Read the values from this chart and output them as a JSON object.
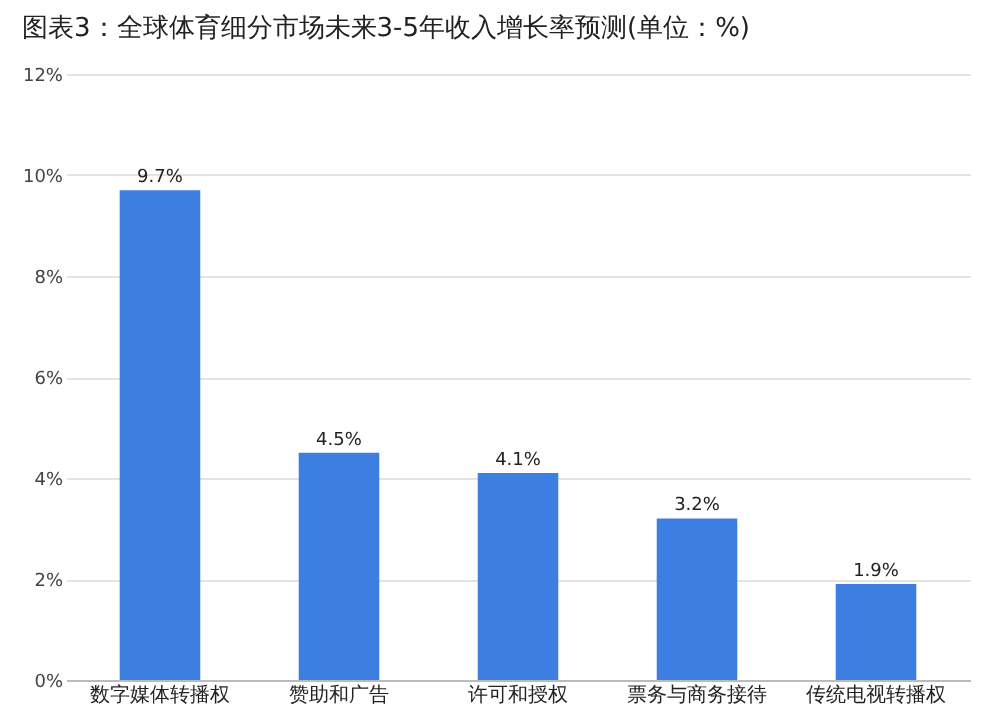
{
  "chart_data": {
    "type": "bar",
    "title": "图表3：全球体育细分市场未来3-5年收入增长率预测(单位：%)",
    "categories": [
      "数字媒体转播权",
      "赞助和广告",
      "许可和授权",
      "票务与商务接待",
      "传统电视转播权"
    ],
    "values": [
      9.7,
      4.5,
      4.1,
      3.2,
      1.9
    ],
    "value_labels": [
      "9.7%",
      "4.5%",
      "4.1%",
      "3.2%",
      "1.9%"
    ],
    "color": "#3d7fe0",
    "ylim": [
      0,
      12
    ],
    "yticks": [
      {
        "value": 0,
        "label": "0%"
      },
      {
        "value": 2,
        "label": "2%"
      },
      {
        "value": 4,
        "label": "4%"
      },
      {
        "value": 6,
        "label": "6%"
      },
      {
        "value": 8,
        "label": "8%"
      },
      {
        "value": 10,
        "label": "10%"
      },
      {
        "value": 12,
        "label": "12%"
      }
    ],
    "grid": "y"
  }
}
